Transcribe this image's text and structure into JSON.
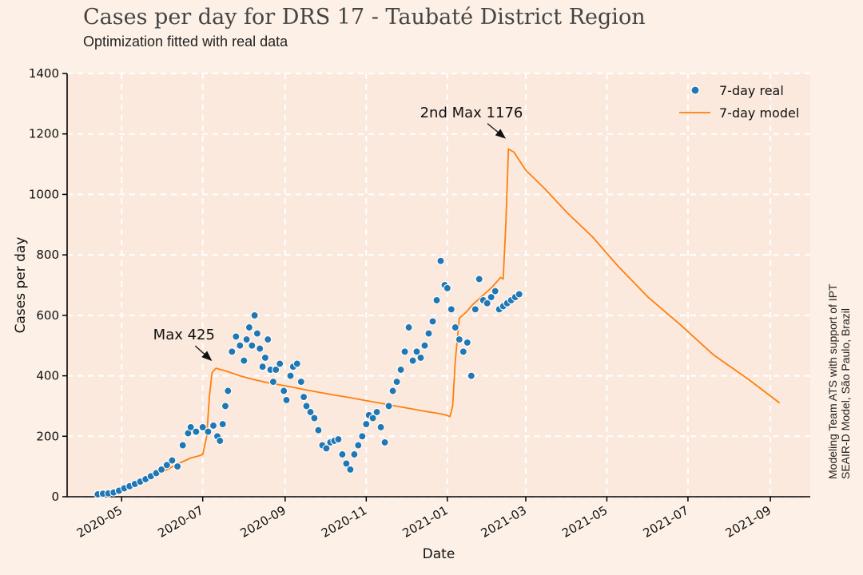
{
  "chart_data": {
    "type": "line",
    "title": "Cases per day for DRS 17 - Taubaté District Region",
    "subtitle": "Optimization fitted with real data",
    "xlabel": "Date",
    "ylabel": "Cases per day",
    "side_note": [
      "Modeling Team ATS with support of IPT",
      "SEAIR-D Model, São Paulo, Brazil"
    ],
    "xlim": [
      "2020-03-21",
      "2021-10-01"
    ],
    "ylim": [
      0,
      1400
    ],
    "x_ticks": [
      "2020-05-01",
      "2020-07-01",
      "2020-09-01",
      "2020-11-01",
      "2021-01-01",
      "2021-03-01",
      "2021-05-01",
      "2021-07-01",
      "2021-09-01"
    ],
    "x_tick_labels": [
      "2020-05",
      "2020-07",
      "2020-09",
      "2020-11",
      "2021-01",
      "2021-03",
      "2021-05",
      "2021-07",
      "2021-09"
    ],
    "y_ticks": [
      0,
      200,
      400,
      600,
      800,
      1000,
      1200,
      1400
    ],
    "y_tick_labels": [
      "0",
      "200",
      "400",
      "600",
      "800",
      "1000",
      "1200",
      "1400"
    ],
    "grid": true,
    "legend_position": "top-right",
    "colors": {
      "real": "#1f77b4",
      "model": "#ff7f0e",
      "plot_bg": "#fbe9dd",
      "grid": "#ffffff"
    },
    "series": [
      {
        "name": "7-day real",
        "kind": "scatter",
        "x": [
          "2020-04-13",
          "2020-04-17",
          "2020-04-21",
          "2020-04-25",
          "2020-04-29",
          "2020-05-03",
          "2020-05-07",
          "2020-05-11",
          "2020-05-15",
          "2020-05-19",
          "2020-05-23",
          "2020-05-27",
          "2020-05-31",
          "2020-06-04",
          "2020-06-08",
          "2020-06-12",
          "2020-06-16",
          "2020-06-20",
          "2020-06-22",
          "2020-06-26",
          "2020-07-01",
          "2020-07-05",
          "2020-07-09",
          "2020-07-12",
          "2020-07-14",
          "2020-07-16",
          "2020-07-18",
          "2020-07-20",
          "2020-07-23",
          "2020-07-26",
          "2020-07-29",
          "2020-08-01",
          "2020-08-03",
          "2020-08-05",
          "2020-08-07",
          "2020-08-09",
          "2020-08-11",
          "2020-08-13",
          "2020-08-15",
          "2020-08-17",
          "2020-08-19",
          "2020-08-21",
          "2020-08-23",
          "2020-08-25",
          "2020-08-28",
          "2020-08-31",
          "2020-09-02",
          "2020-09-05",
          "2020-09-07",
          "2020-09-10",
          "2020-09-13",
          "2020-09-15",
          "2020-09-17",
          "2020-09-20",
          "2020-09-23",
          "2020-09-26",
          "2020-09-29",
          "2020-10-02",
          "2020-10-05",
          "2020-10-08",
          "2020-10-11",
          "2020-10-14",
          "2020-10-17",
          "2020-10-20",
          "2020-10-23",
          "2020-10-26",
          "2020-10-29",
          "2020-11-01",
          "2020-11-03",
          "2020-11-06",
          "2020-11-09",
          "2020-11-12",
          "2020-11-15",
          "2020-11-18",
          "2020-11-21",
          "2020-11-24",
          "2020-11-27",
          "2020-11-30",
          "2020-12-03",
          "2020-12-06",
          "2020-12-09",
          "2020-12-12",
          "2020-12-15",
          "2020-12-18",
          "2020-12-21",
          "2020-12-24",
          "2020-12-27",
          "2020-12-30",
          "2021-01-01",
          "2021-01-04",
          "2021-01-07",
          "2021-01-10",
          "2021-01-13",
          "2021-01-16",
          "2021-01-19",
          "2021-01-22",
          "2021-01-25",
          "2021-01-28",
          "2021-01-31",
          "2021-02-03",
          "2021-02-06",
          "2021-02-09",
          "2021-02-12",
          "2021-02-15",
          "2021-02-18",
          "2021-02-21",
          "2021-02-24"
        ],
        "y": [
          8,
          10,
          11,
          14,
          20,
          28,
          35,
          42,
          50,
          58,
          68,
          78,
          90,
          105,
          120,
          100,
          170,
          210,
          230,
          215,
          230,
          215,
          235,
          200,
          185,
          240,
          300,
          350,
          480,
          530,
          500,
          450,
          520,
          560,
          500,
          600,
          540,
          490,
          430,
          460,
          520,
          420,
          380,
          420,
          440,
          350,
          320,
          400,
          430,
          440,
          380,
          330,
          300,
          280,
          260,
          220,
          170,
          160,
          180,
          185,
          190,
          140,
          110,
          90,
          140,
          170,
          200,
          240,
          270,
          260,
          280,
          230,
          180,
          300,
          350,
          380,
          420,
          480,
          560,
          450,
          480,
          460,
          500,
          540,
          580,
          650,
          780,
          700,
          690,
          620,
          560,
          520,
          480,
          510,
          400,
          620,
          720,
          650,
          640,
          660,
          680,
          620,
          630,
          640,
          650,
          660,
          670
        ]
      },
      {
        "name": "7-day model",
        "kind": "line",
        "x": [
          "2020-04-17",
          "2020-04-25",
          "2020-05-03",
          "2020-05-13",
          "2020-05-23",
          "2020-06-02",
          "2020-06-12",
          "2020-06-22",
          "2020-06-28",
          "2020-07-01",
          "2020-07-04",
          "2020-07-06",
          "2020-07-08",
          "2020-07-11",
          "2020-07-19",
          "2020-07-29",
          "2020-08-08",
          "2020-08-18",
          "2020-08-28",
          "2020-09-07",
          "2020-09-17",
          "2020-09-27",
          "2020-10-07",
          "2020-10-17",
          "2020-10-27",
          "2020-11-06",
          "2020-11-16",
          "2020-11-26",
          "2020-12-06",
          "2020-12-16",
          "2020-12-26",
          "2020-12-31",
          "2021-01-03",
          "2021-01-05",
          "2021-01-07",
          "2021-01-10",
          "2021-01-15",
          "2021-01-20",
          "2021-01-25",
          "2021-01-30",
          "2021-02-04",
          "2021-02-08",
          "2021-02-10",
          "2021-02-12",
          "2021-02-14",
          "2021-02-16",
          "2021-02-20",
          "2021-03-01",
          "2021-03-15",
          "2021-04-01",
          "2021-04-20",
          "2021-05-10",
          "2021-06-01",
          "2021-06-25",
          "2021-07-20",
          "2021-08-15",
          "2021-09-08"
        ],
        "y": [
          5,
          10,
          20,
          40,
          62,
          85,
          108,
          128,
          135,
          140,
          200,
          330,
          410,
          425,
          415,
          400,
          388,
          378,
          370,
          362,
          353,
          345,
          337,
          330,
          322,
          314,
          306,
          298,
          290,
          282,
          275,
          270,
          265,
          300,
          450,
          590,
          610,
          635,
          655,
          675,
          695,
          715,
          725,
          720,
          900,
          1150,
          1140,
          1080,
          1020,
          940,
          860,
          760,
          660,
          570,
          470,
          390,
          310
        ]
      }
    ],
    "annotations": [
      {
        "text": "Max  425",
        "x": "2020-07-11",
        "y": 425
      },
      {
        "text": "2nd Max 1176",
        "x": "2021-02-17",
        "y": 1176
      }
    ]
  }
}
